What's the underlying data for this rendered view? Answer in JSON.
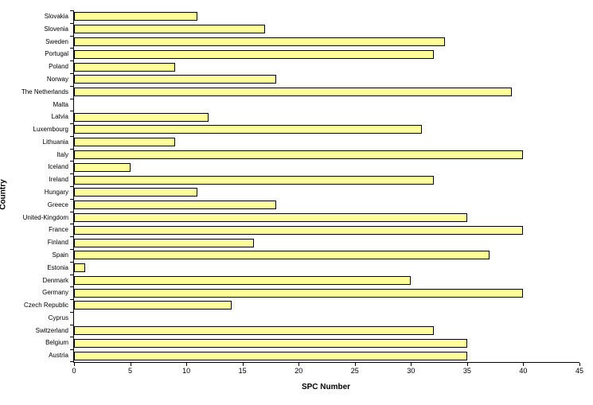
{
  "chart_data": {
    "type": "bar",
    "orientation": "horizontal",
    "title": "",
    "xlabel": "SPC Number",
    "ylabel": "Country",
    "xlim": [
      0,
      45
    ],
    "x_ticks": [
      0,
      5,
      10,
      15,
      20,
      25,
      30,
      35,
      40,
      45
    ],
    "grid": false,
    "legend": false,
    "bar_color": "#FFFF99",
    "bar_border_color": "#000000",
    "background_color": "#FFFFFF",
    "categories": [
      "Slovakia",
      "Slovenia",
      "Sweden",
      "Portugal",
      "Poland",
      "Norway",
      "The Netherlands",
      "Malta",
      "Latvia",
      "Luxembourg",
      "Lithuania",
      "Italy",
      "Iceland",
      "Ireland",
      "Hungary",
      "Greece",
      "United-Kingdom",
      "France",
      "Finland",
      "Spain",
      "Estonia",
      "Denmark",
      "Germany",
      "Czech Republic",
      "Cyprus",
      "Switzerland",
      "Belgium",
      "Austria"
    ],
    "values": [
      11,
      17,
      33,
      32,
      9,
      18,
      39,
      0,
      12,
      31,
      9,
      40,
      5,
      32,
      11,
      18,
      35,
      40,
      16,
      37,
      1,
      30,
      40,
      14,
      0,
      32,
      35,
      35
    ]
  }
}
